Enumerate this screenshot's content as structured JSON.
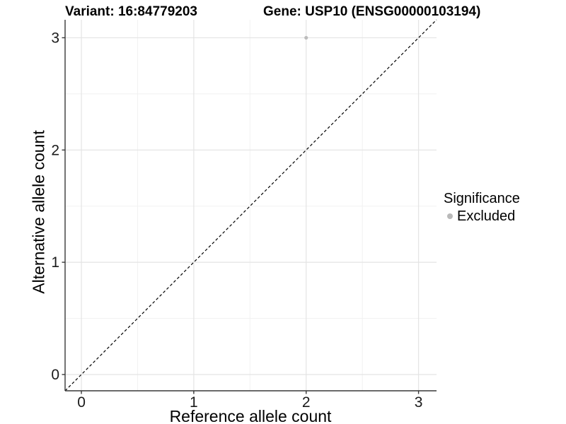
{
  "header": {
    "variant_title": "Variant: 16:84779203",
    "gene_title": "Gene: USP10 (ENSG00000103194)"
  },
  "legend": {
    "title": "Significance",
    "entries": [
      {
        "label": "Excluded",
        "color": "#b9b9b9"
      }
    ]
  },
  "colors": {
    "background": "#ffffff",
    "grid_major": "#e4e4e4",
    "grid_minor": "#f1f1f1",
    "axis_line": "#383838",
    "tick_mark": "#383838",
    "tick_label": "#1a1a1a",
    "identity_line": "#000000",
    "point": "#bcbcbc"
  },
  "chart_data": {
    "type": "scatter",
    "titles": [
      "Variant: 16:84779203",
      "Gene: USP10 (ENSG00000103194)"
    ],
    "xlabel": "Reference allele count",
    "ylabel": "Alternative allele count",
    "xlim": [
      -0.145,
      3.16
    ],
    "ylim": [
      -0.145,
      3.16
    ],
    "x_ticks": [
      0,
      1,
      2,
      3
    ],
    "y_ticks": [
      0,
      1,
      2,
      3
    ],
    "x_minor_ticks": [
      0.5,
      1.5,
      2.5
    ],
    "y_minor_ticks": [
      0.5,
      1.5,
      2.5
    ],
    "grid": "major and minor, light gray on white",
    "legend_position": "right",
    "series": [
      {
        "name": "Excluded",
        "color": "#bcbcbc",
        "points": [
          {
            "x": 2,
            "y": 3
          }
        ]
      }
    ],
    "identity_line": {
      "slope": 1,
      "intercept": 0,
      "style": "dashed",
      "color": "#000000"
    }
  }
}
